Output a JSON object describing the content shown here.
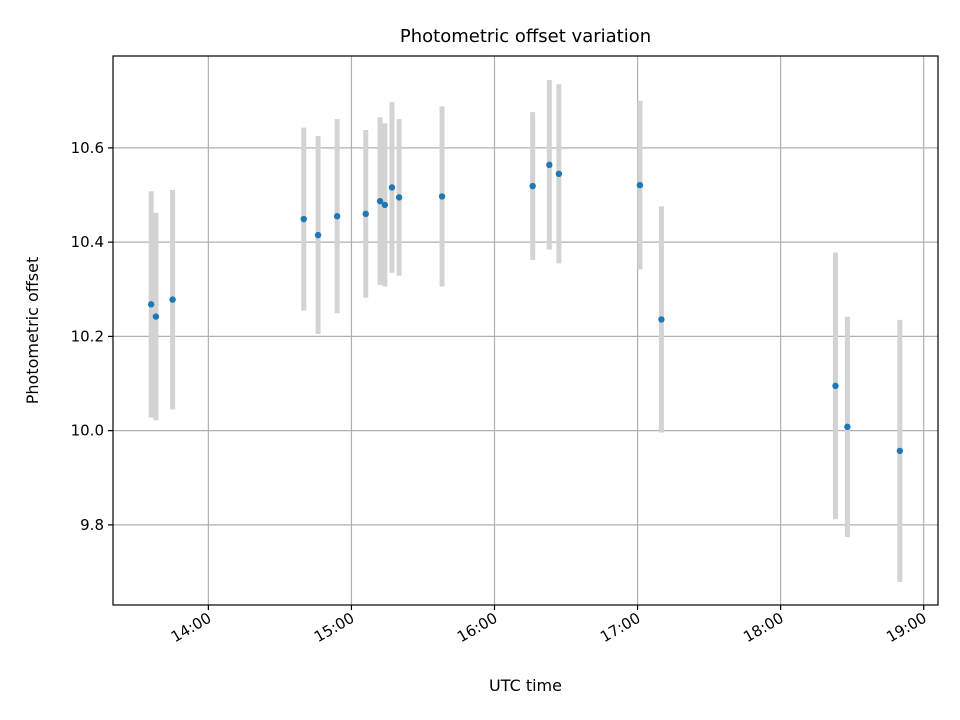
{
  "chart_data": {
    "type": "scatter",
    "title": "Photometric offset variation",
    "xlabel": "UTC time",
    "ylabel": "Photometric offset",
    "x_ticks": [
      "14:00",
      "15:00",
      "16:00",
      "17:00",
      "18:00",
      "19:00"
    ],
    "y_ticks": [
      "9.8",
      "10.0",
      "10.2",
      "10.4",
      "10.6"
    ],
    "xlim": [
      "13:20",
      "19:06"
    ],
    "ylim": [
      9.63,
      10.795
    ],
    "grid": true,
    "colors": {
      "points": "#1f77b4",
      "errorbars": "#d3d3d3",
      "grid": "#b0b0b0"
    },
    "series": [
      {
        "points": [
          {
            "x": "13:36",
            "y": 10.268,
            "yerr": 0.24
          },
          {
            "x": "13:38",
            "y": 10.242,
            "yerr": 0.22
          },
          {
            "x": "13:45",
            "y": 10.278,
            "yerr": 0.233
          },
          {
            "x": "14:40",
            "y": 10.449,
            "yerr": 0.194
          },
          {
            "x": "14:46",
            "y": 10.415,
            "yerr": 0.21
          },
          {
            "x": "14:54",
            "y": 10.455,
            "yerr": 0.206
          },
          {
            "x": "15:06",
            "y": 10.46,
            "yerr": 0.178
          },
          {
            "x": "15:12",
            "y": 10.487,
            "yerr": 0.178
          },
          {
            "x": "15:14",
            "y": 10.479,
            "yerr": 0.173
          },
          {
            "x": "15:17",
            "y": 10.516,
            "yerr": 0.181
          },
          {
            "x": "15:20",
            "y": 10.495,
            "yerr": 0.166
          },
          {
            "x": "15:38",
            "y": 10.497,
            "yerr": 0.191
          },
          {
            "x": "16:16",
            "y": 10.519,
            "yerr": 0.157
          },
          {
            "x": "16:23",
            "y": 10.564,
            "yerr": 0.18
          },
          {
            "x": "16:27",
            "y": 10.545,
            "yerr": 0.19
          },
          {
            "x": "17:01",
            "y": 10.521,
            "yerr": 0.179
          },
          {
            "x": "17:10",
            "y": 10.236,
            "yerr": 0.24
          },
          {
            "x": "18:23",
            "y": 10.095,
            "yerr": 0.283
          },
          {
            "x": "18:28",
            "y": 10.008,
            "yerr": 0.234
          },
          {
            "x": "18:50",
            "y": 9.957,
            "yerr": 0.278
          }
        ]
      }
    ]
  }
}
